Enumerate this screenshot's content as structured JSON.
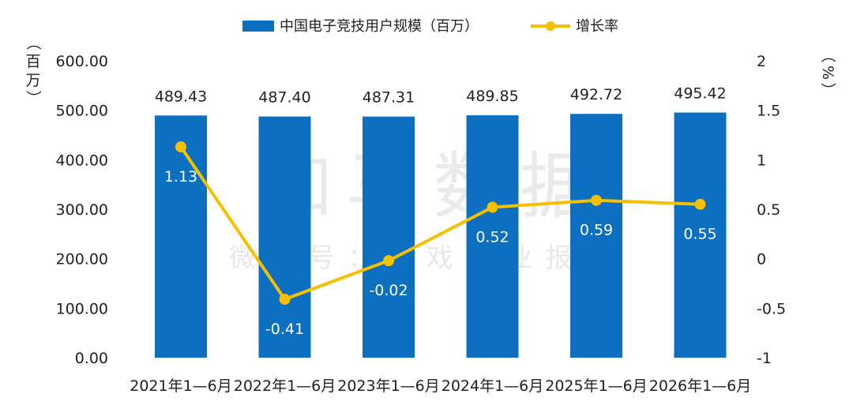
{
  "watermark": {
    "main": "伽马数据",
    "sub": "微信号：游戏产业报告"
  },
  "chart_data": {
    "type": "bar",
    "categories": [
      "2021年1—6月",
      "2022年1—6月",
      "2023年1—6月",
      "2024年1—6月",
      "2025年1—6月",
      "2026年1—6月"
    ],
    "series": [
      {
        "name": "中国电子竞技用户规模（百万）",
        "type": "bar",
        "axis": "left",
        "color": "#0d6fc0",
        "values": [
          489.43,
          487.4,
          487.31,
          489.85,
          492.72,
          495.42
        ],
        "labels": [
          "489.43",
          "487.40",
          "487.31",
          "489.85",
          "492.72",
          "495.42"
        ]
      },
      {
        "name": "增长率",
        "type": "line",
        "axis": "right",
        "color": "#f5c000",
        "values": [
          1.13,
          -0.41,
          -0.02,
          0.52,
          0.59,
          0.55
        ],
        "labels": [
          "1.13",
          "-0.41",
          "-0.02",
          "0.52",
          "0.59",
          "0.55"
        ]
      }
    ],
    "y_left": {
      "label_chars": [
        "（",
        "百",
        "万",
        "）"
      ],
      "ylim": [
        0,
        600
      ],
      "ticks": [
        "0.00",
        "100.00",
        "200.00",
        "300.00",
        "400.00",
        "500.00",
        "600.00"
      ]
    },
    "y_right": {
      "label_chars": [
        "（",
        "%",
        "）"
      ],
      "ylim": [
        -1,
        2
      ],
      "ticks": [
        "-1",
        "-0.5",
        "0",
        "0.5",
        "1",
        "1.5",
        "2"
      ]
    },
    "legend_position": "top-center",
    "grid": false
  }
}
